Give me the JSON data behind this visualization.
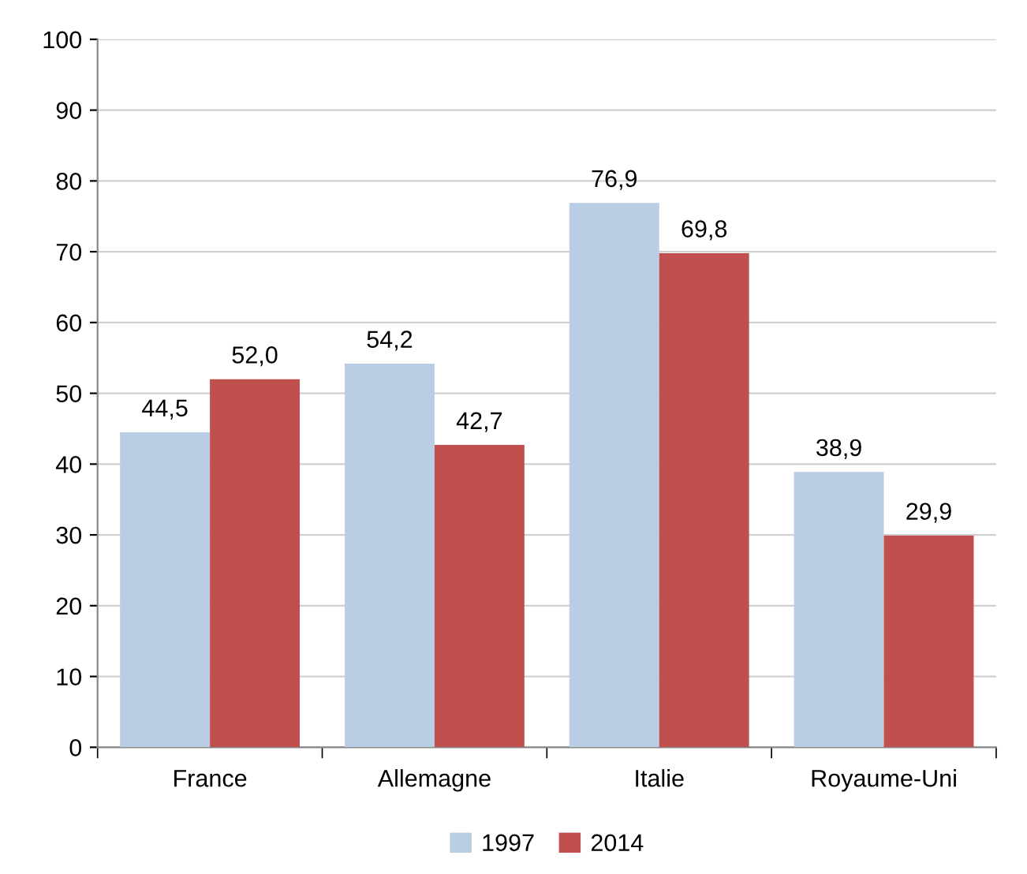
{
  "chart_data": {
    "type": "bar",
    "categories": [
      "France",
      "Allemagne",
      "Italie",
      "Royaume-Uni"
    ],
    "series": [
      {
        "name": "1997",
        "color": "#b9cde5",
        "values": [
          44.5,
          54.2,
          76.9,
          38.9
        ],
        "value_labels": [
          "44,5",
          "54,2",
          "76,9",
          "38,9"
        ]
      },
      {
        "name": "2014",
        "color": "#c0504d",
        "values": [
          52.0,
          42.7,
          69.8,
          29.9
        ],
        "value_labels": [
          "52,0",
          "42,7",
          "69,8",
          "29,9"
        ]
      }
    ],
    "ylim": [
      0,
      100
    ],
    "yticks": [
      0,
      10,
      20,
      30,
      40,
      50,
      60,
      70,
      80,
      90,
      100
    ],
    "grid": "y",
    "legend": "bottom"
  }
}
